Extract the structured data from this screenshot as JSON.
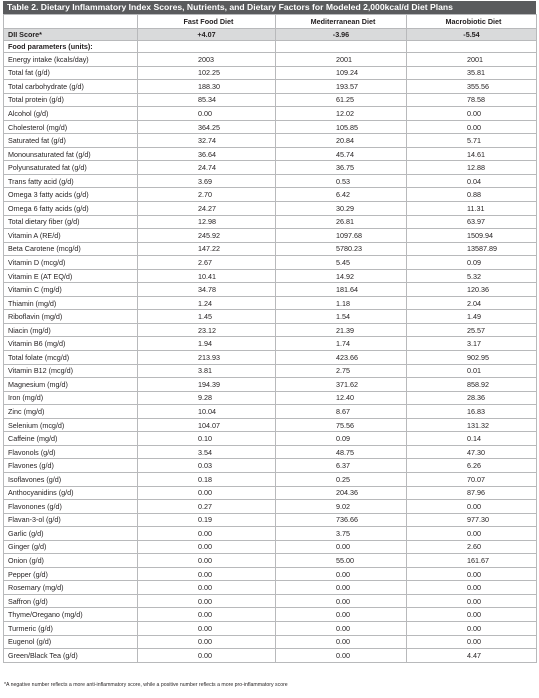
{
  "title": "Table 2. Dietary Inflammatory Index Scores, Nutrients, and Dietary Factors for Modeled 2,000kcal/d Diet Plans",
  "columns": [
    "",
    "Fast Food Diet",
    "Mediterranean Diet",
    "Macrobiotic Diet"
  ],
  "dii_row": {
    "label": "DII Score*",
    "values": [
      "+4.07",
      "-3.96",
      "-5.54"
    ]
  },
  "section_label": "Food parameters (units):",
  "rows": [
    {
      "label": "Energy intake (kcals/day)",
      "values": [
        "2003",
        "2001",
        "2001"
      ]
    },
    {
      "label": "Total fat (g/d)",
      "values": [
        "102.25",
        "109.24",
        "35.81"
      ]
    },
    {
      "label": "Total carbohydrate (g/d)",
      "values": [
        "188.30",
        "193.57",
        "355.56"
      ]
    },
    {
      "label": "Total protein (g/d)",
      "values": [
        "85.34",
        "61.25",
        "78.58"
      ]
    },
    {
      "label": "Alcohol (g/d)",
      "values": [
        "0.00",
        "12.02",
        "0.00"
      ]
    },
    {
      "label": "Cholesterol (mg/d)",
      "values": [
        "364.25",
        "105.85",
        "0.00"
      ]
    },
    {
      "label": "Saturated fat (g/d)",
      "values": [
        "32.74",
        "20.84",
        "5.71"
      ]
    },
    {
      "label": "Monounsaturated fat (g/d)",
      "values": [
        "36.64",
        "45.74",
        "14.61"
      ]
    },
    {
      "label": "Polyunsaturated fat (g/d)",
      "values": [
        "24.74",
        "36.75",
        "12.88"
      ]
    },
    {
      "label": "Trans fatty acid (g/d)",
      "values": [
        "3.69",
        "0.53",
        "0.04"
      ]
    },
    {
      "label": "Omega 3 fatty acids (g/d)",
      "values": [
        "2.70",
        "6.42",
        "0.88"
      ]
    },
    {
      "label": "Omega 6 fatty acids (g/d)",
      "values": [
        "24.27",
        "30.29",
        "11.31"
      ]
    },
    {
      "label": "Total dietary fiber (g/d)",
      "values": [
        "12.98",
        "26.81",
        "63.97"
      ]
    },
    {
      "label": "Vitamin A (RE/d)",
      "values": [
        "245.92",
        "1097.68",
        "1509.94"
      ]
    },
    {
      "label": "Beta Carotene (mcg/d)",
      "values": [
        "147.22",
        "5780.23",
        "13587.89"
      ]
    },
    {
      "label": "Vitamin D (mcg/d)",
      "values": [
        "2.67",
        "5.45",
        "0.09"
      ]
    },
    {
      "label": "Vitamin E (AT EQ/d)",
      "values": [
        "10.41",
        "14.92",
        "5.32"
      ]
    },
    {
      "label": "Vitamin C (mg/d)",
      "values": [
        "34.78",
        "181.64",
        "120.36"
      ]
    },
    {
      "label": "Thiamin (mg/d)",
      "values": [
        "1.24",
        "1.18",
        "2.04"
      ]
    },
    {
      "label": "Riboflavin (mg/d)",
      "values": [
        "1.45",
        "1.54",
        "1.49"
      ]
    },
    {
      "label": "Niacin (mg/d)",
      "values": [
        "23.12",
        "21.39",
        "25.57"
      ]
    },
    {
      "label": "Vitamin B6 (mg/d)",
      "values": [
        "1.94",
        "1.74",
        "3.17"
      ]
    },
    {
      "label": "Total folate (mcg/d)",
      "values": [
        "213.93",
        "423.66",
        "902.95"
      ]
    },
    {
      "label": "Vitamin B12 (mcg/d)",
      "values": [
        "3.81",
        "2.75",
        "0.01"
      ]
    },
    {
      "label": "Magnesium (mg/d)",
      "values": [
        "194.39",
        "371.62",
        "858.92"
      ]
    },
    {
      "label": "Iron (mg/d)",
      "values": [
        "9.28",
        "12.40",
        "28.36"
      ]
    },
    {
      "label": "Zinc (mg/d)",
      "values": [
        "10.04",
        "8.67",
        "16.83"
      ]
    },
    {
      "label": "Selenium (mcg/d)",
      "values": [
        "104.07",
        "75.56",
        "131.32"
      ]
    },
    {
      "label": "Caffeine (mg/d)",
      "values": [
        "0.10",
        "0.09",
        "0.14"
      ]
    },
    {
      "label": "Flavonols (g/d)",
      "values": [
        "3.54",
        "48.75",
        "47.30"
      ]
    },
    {
      "label": "Flavones (g/d)",
      "values": [
        "0.03",
        "6.37",
        "6.26"
      ]
    },
    {
      "label": "Isoflavones (g/d)",
      "values": [
        "0.18",
        "0.25",
        "70.07"
      ]
    },
    {
      "label": "Anthocyanidins (g/d)",
      "values": [
        "0.00",
        "204.36",
        "87.96"
      ]
    },
    {
      "label": "Flavonones (g/d)",
      "values": [
        "0.27",
        "9.02",
        "0.00"
      ]
    },
    {
      "label": "Flavan-3-ol (g/d)",
      "values": [
        "0.19",
        "736.66",
        "977.30"
      ]
    },
    {
      "label": "Garlic (g/d)",
      "values": [
        "0.00",
        "3.75",
        "0.00"
      ]
    },
    {
      "label": "Ginger (g/d)",
      "values": [
        "0.00",
        "0.00",
        "2.60"
      ]
    },
    {
      "label": "Onion (g/d)",
      "values": [
        "0.00",
        "55.00",
        "161.67"
      ]
    },
    {
      "label": "Pepper (g/d)",
      "values": [
        "0.00",
        "0.00",
        "0.00"
      ]
    },
    {
      "label": "Rosemary (mg/d)",
      "values": [
        "0.00",
        "0.00",
        "0.00"
      ]
    },
    {
      "label": "Saffron (g/d)",
      "values": [
        "0.00",
        "0.00",
        "0.00"
      ]
    },
    {
      "label": "Thyme/Oregano (mg/d)",
      "values": [
        "0.00",
        "0.00",
        "0.00"
      ]
    },
    {
      "label": "Turmeric (g/d)",
      "values": [
        "0.00",
        "0.00",
        "0.00"
      ]
    },
    {
      "label": "Eugenol (g/d)",
      "values": [
        "0.00",
        "0.00",
        "0.00"
      ]
    },
    {
      "label": "Green/Black Tea (g/d)",
      "values": [
        "0.00",
        "0.00",
        "4.47"
      ]
    }
  ],
  "footnote": "*A negative number reflects a more anti-inflammatory score, while a positive number reflects a more pro-inflammatory score"
}
